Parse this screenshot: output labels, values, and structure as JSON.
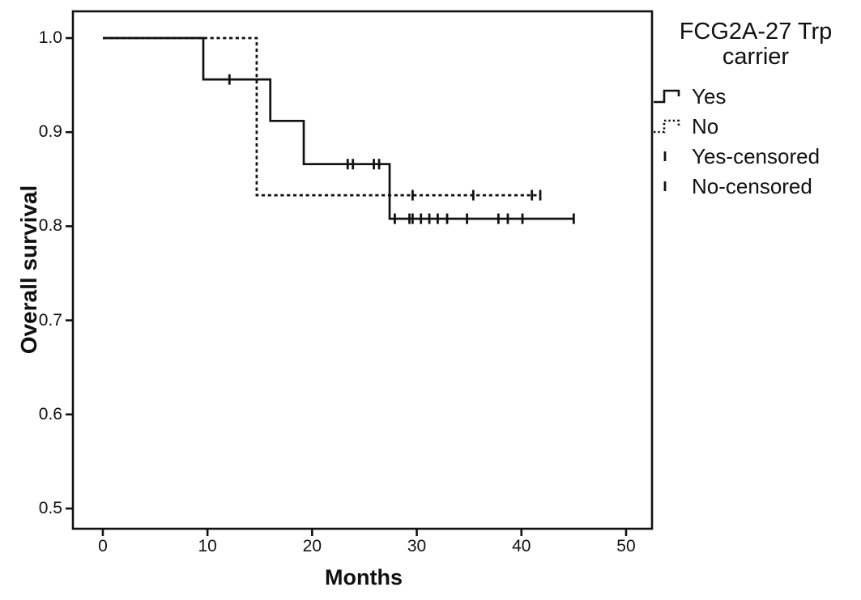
{
  "figure": {
    "background": "#ffffff",
    "line_color": "#111111"
  },
  "axes": {
    "x_title": "Months",
    "y_title": "Overall survival",
    "x_tick_labels": [
      "0",
      "10",
      "20",
      "30",
      "40",
      "50"
    ],
    "y_tick_labels": [
      "1.0",
      "0.9",
      "0.8",
      "0.7",
      "0.6",
      "0.5"
    ]
  },
  "legend": {
    "title_line1": "FCG2A-27 Trp",
    "title_line2": "carrier",
    "items": [
      {
        "label": "Yes",
        "glyph": "solid-step-icon"
      },
      {
        "label": "No",
        "glyph": "dotted-step-icon"
      },
      {
        "label": "Yes-censored",
        "glyph": "censor-tick-icon"
      },
      {
        "label": "No-censored",
        "glyph": "censor-tick-icon"
      }
    ]
  },
  "chart_data": {
    "type": "line",
    "subtype": "kaplan_meier_step",
    "title": "",
    "xlabel": "Months",
    "ylabel": "Overall survival",
    "xlim": [
      -2.86,
      52.48
    ],
    "ylim": [
      0.4785,
      1.0284
    ],
    "xticks": [
      0,
      10,
      20,
      30,
      40,
      50
    ],
    "yticks": [
      1.0,
      0.9,
      0.8,
      0.7,
      0.6,
      0.5
    ],
    "grid": false,
    "legend_position": "right",
    "legend_title": "FCG2A-27 Trp carrier",
    "series": [
      {
        "name": "Yes",
        "style": "solid",
        "color": "#111111",
        "steps": [
          [
            0,
            1.0
          ],
          [
            9.6,
            1.0
          ],
          [
            9.6,
            0.956
          ],
          [
            16.0,
            0.956
          ],
          [
            16.0,
            0.912
          ],
          [
            19.2,
            0.912
          ],
          [
            19.2,
            0.866
          ],
          [
            27.4,
            0.866
          ],
          [
            27.4,
            0.808
          ],
          [
            45.0,
            0.808
          ]
        ],
        "censored": [
          [
            12.1,
            0.956
          ],
          [
            23.4,
            0.866
          ],
          [
            23.9,
            0.866
          ],
          [
            25.9,
            0.866
          ],
          [
            26.4,
            0.866
          ],
          [
            27.9,
            0.808
          ],
          [
            29.3,
            0.808
          ],
          [
            29.6,
            0.808
          ],
          [
            30.4,
            0.808
          ],
          [
            31.2,
            0.808
          ],
          [
            32.0,
            0.808
          ],
          [
            32.9,
            0.808
          ],
          [
            34.8,
            0.808
          ],
          [
            37.8,
            0.808
          ],
          [
            38.7,
            0.808
          ],
          [
            40.1,
            0.808
          ],
          [
            45.0,
            0.808
          ]
        ]
      },
      {
        "name": "No",
        "style": "dashed",
        "color": "#111111",
        "steps": [
          [
            0,
            1.0
          ],
          [
            14.7,
            1.0
          ],
          [
            14.7,
            0.833
          ],
          [
            41.8,
            0.833
          ]
        ],
        "censored": [
          [
            29.6,
            0.833
          ],
          [
            35.4,
            0.833
          ],
          [
            41.0,
            0.833
          ],
          [
            41.8,
            0.833
          ]
        ]
      }
    ]
  }
}
